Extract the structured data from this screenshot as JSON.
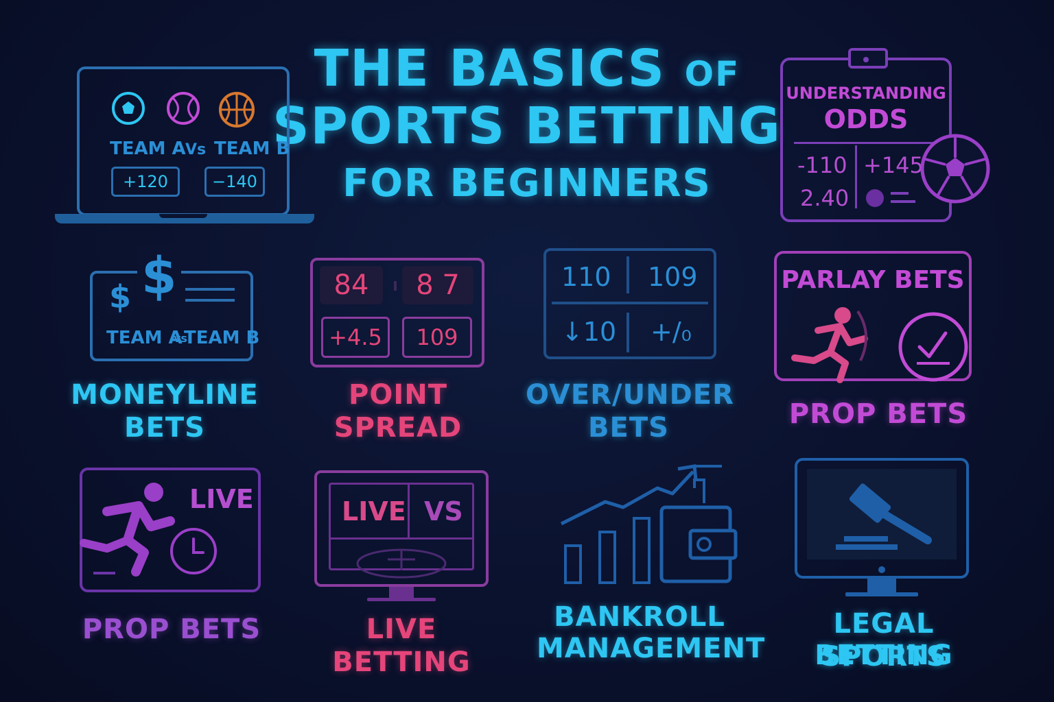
{
  "title": {
    "line1_a": "THE BASICS",
    "line1_b": "OF",
    "line2": "SPORTS BETTING",
    "line3": "FOR BEGINNERS"
  },
  "laptop": {
    "team_a": "TEAM A",
    "vs": "Vs",
    "team_b": "TEAM B",
    "odds_a": "+120",
    "odds_b": "−140"
  },
  "odds_card": {
    "heading1": "UNDERSTANDING",
    "heading2": "ODDS",
    "v1": "-110",
    "v2": "+145",
    "v3": "2.40"
  },
  "moneyline": {
    "teams": "TEAM A",
    "vs": "vs",
    "team_b": "TEAM B",
    "label1": "MONEYLINE",
    "label2": "BETS"
  },
  "point_spread": {
    "score_a": "84",
    "score_b": "8 7",
    "spread": "+4.5",
    "total": "109",
    "label1": "POINT",
    "label2": "SPREAD"
  },
  "over_under": {
    "v1": "110",
    "v2": "109",
    "v3": "↓10",
    "v4": "+/₀",
    "label1": "OVER/UNDER",
    "label2": "BETS"
  },
  "parlay": {
    "heading": "PARLAY BETS",
    "label": "PROP BETS"
  },
  "live_prop": {
    "live": "LIVE",
    "label": "PROP BETS"
  },
  "live_betting": {
    "live": "LIVE",
    "vs": "VS",
    "label": "LIVE BETTING"
  },
  "bankroll": {
    "label1": "BANKROLL",
    "label2": "MANAGEMENT"
  },
  "legal": {
    "label1": "LEGAL SPORTS",
    "label2": "BETTING"
  },
  "colors": {
    "cyan": "#2ec6f2",
    "blue": "#2b8fd6",
    "pink": "#e5457a",
    "magenta": "#c24bd6",
    "purple": "#9a4fd0",
    "orange": "#d8782e",
    "background": "#0b1330"
  }
}
